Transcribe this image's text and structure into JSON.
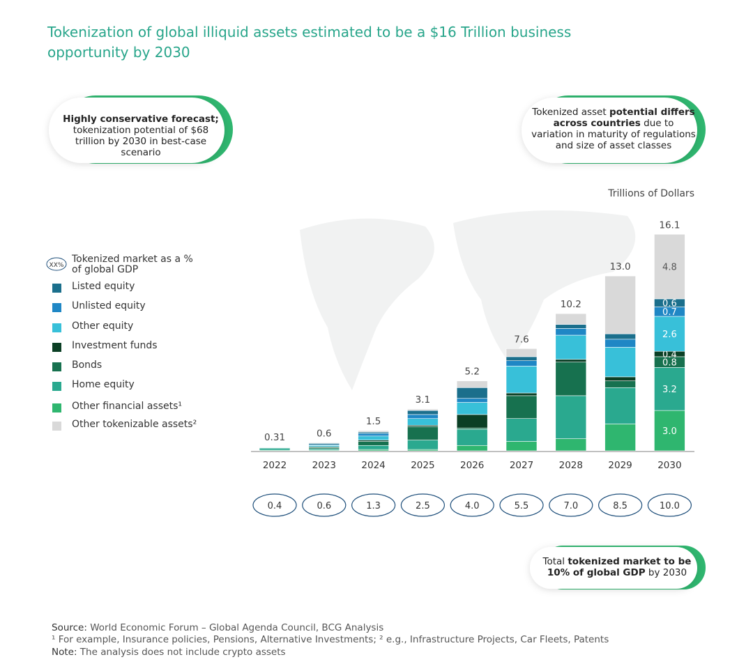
{
  "title": "Tokenization of global illiquid assets estimated to be a $16 Trillion business opportunity by 2030",
  "callouts": [
    {
      "parts": [
        {
          "text": "Highly conservative forecast;",
          "bold": true
        },
        {
          "text": " tokenization potential of $68 trillion by 2030 in best-case scenario",
          "bold": false
        }
      ]
    },
    {
      "parts": [
        {
          "text": "Tokenized asset ",
          "bold": false
        },
        {
          "text": "potential differs across countries",
          "bold": true
        },
        {
          "text": " due to variation in maturity of regulations and size of asset classes",
          "bold": false
        }
      ]
    },
    {
      "parts": [
        {
          "text": "Total ",
          "bold": false
        },
        {
          "text": "tokenized market to be 10% of global GDP",
          "bold": true
        },
        {
          "text": " by 2030",
          "bold": false
        }
      ]
    }
  ],
  "footer": {
    "source_label": "Source:",
    "source": " World Economic Forum – Global Agenda Council, BCG Analysis",
    "footnotes": "¹ For example, Insurance policies, Pensions, Alternative Investments; ² e.g., Infrastructure Projects, Car Fleets, Patents",
    "note_label": "Note:",
    "note": " The analysis does not include crypto assets"
  },
  "chart_data": {
    "type": "stacked_bar",
    "units_label": "Trillions of Dollars",
    "categories": [
      "2022",
      "2023",
      "2024",
      "2025",
      "2026",
      "2027",
      "2028",
      "2029",
      "2030"
    ],
    "series": [
      {
        "name": "Other financial assets¹",
        "color": "#2fb66f",
        "values": [
          0.05,
          0.05,
          0.1,
          0.1,
          0.4,
          0.7,
          0.9,
          2.0,
          3.0
        ],
        "value_labels": [
          null,
          null,
          null,
          null,
          null,
          null,
          null,
          null,
          "3.0"
        ]
      },
      {
        "name": "Home equity",
        "color": "#2aa98f",
        "values": [
          0.15,
          0.1,
          0.3,
          0.7,
          1.2,
          1.7,
          3.2,
          2.7,
          3.2
        ],
        "value_labels": [
          null,
          null,
          null,
          null,
          null,
          null,
          null,
          null,
          "3.2"
        ]
      },
      {
        "name": "Bonds",
        "color": "#17714f",
        "values": [
          0.03,
          0.1,
          0.3,
          1.0,
          0.1,
          1.7,
          2.5,
          0.5,
          0.8
        ],
        "value_labels": [
          null,
          null,
          null,
          null,
          null,
          null,
          null,
          null,
          "0.8"
        ]
      },
      {
        "name": "Investment funds",
        "color": "#0b3f25",
        "values": [
          0.02,
          0.05,
          0.1,
          0.1,
          1.0,
          0.2,
          0.2,
          0.3,
          0.4
        ],
        "value_labels": [
          null,
          null,
          null,
          null,
          null,
          null,
          null,
          null,
          "0.4"
        ]
      },
      {
        "name": "Other equity",
        "color": "#38c0d9",
        "values": [
          0.03,
          0.1,
          0.3,
          0.5,
          0.9,
          2.0,
          1.8,
          2.2,
          2.6
        ],
        "value_labels": [
          null,
          null,
          null,
          null,
          null,
          null,
          null,
          null,
          "2.6"
        ]
      },
      {
        "name": "Unlisted equity",
        "color": "#1f87c5",
        "values": [
          0.01,
          0.05,
          0.2,
          0.3,
          0.3,
          0.4,
          0.5,
          0.6,
          0.7
        ],
        "value_labels": [
          null,
          null,
          null,
          null,
          null,
          null,
          null,
          null,
          "0.7"
        ]
      },
      {
        "name": "Listed equity",
        "color": "#1b6f8c",
        "values": [
          0.01,
          0.1,
          0.1,
          0.3,
          0.8,
          0.3,
          0.3,
          0.4,
          0.6
        ],
        "value_labels": [
          null,
          null,
          null,
          null,
          null,
          null,
          null,
          null,
          "0.6"
        ]
      },
      {
        "name": "Other tokenizable assets²",
        "color": "#d9d9d9",
        "values": [
          0.01,
          0.05,
          0.1,
          0.1,
          0.5,
          0.6,
          0.8,
          4.3,
          4.8
        ],
        "value_labels": [
          null,
          null,
          null,
          null,
          null,
          null,
          null,
          null,
          "4.8"
        ]
      }
    ],
    "totals": [
      0.31,
      0.6,
      1.5,
      3.1,
      5.2,
      7.6,
      10.2,
      13.0,
      16.1
    ],
    "total_labels": [
      "0.31",
      "0.6",
      "1.5",
      "3.1",
      "5.2",
      "7.6",
      "10.2",
      "13.0",
      "16.1"
    ],
    "gdp_legend": {
      "marker": "XX%",
      "label": "Tokenized market as a % of global GDP"
    },
    "gdp_share": [
      0.4,
      0.6,
      1.3,
      2.5,
      4.0,
      5.5,
      7.0,
      8.5,
      10.0
    ],
    "gdp_share_labels": [
      "0.4",
      "0.6",
      "1.3",
      "2.5",
      "4.0",
      "5.5",
      "7.0",
      "8.5",
      "10.0"
    ]
  }
}
